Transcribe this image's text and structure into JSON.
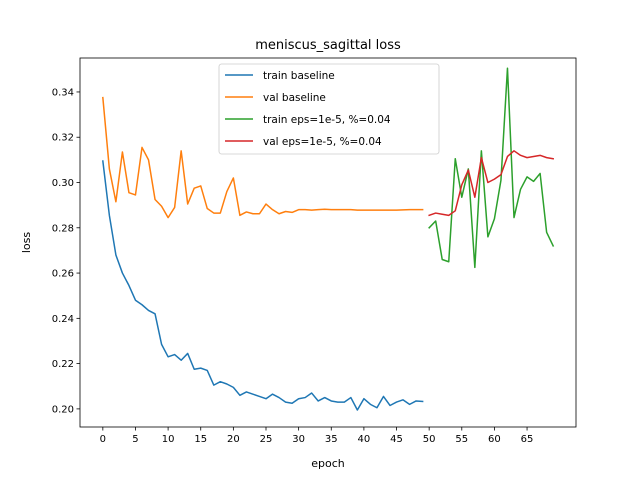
{
  "chart_data": {
    "type": "line",
    "title": "meniscus_sagittal loss",
    "xlabel": "epoch",
    "ylabel": "loss",
    "xlim": [
      -3.5,
      72.5
    ],
    "ylim": [
      0.192,
      0.355
    ],
    "xticks": [
      0,
      5,
      10,
      15,
      20,
      25,
      30,
      35,
      40,
      45,
      50,
      55,
      60,
      65
    ],
    "yticks": [
      0.2,
      0.22,
      0.24,
      0.26,
      0.28,
      0.3,
      0.32,
      0.34
    ],
    "xtick_labels": [
      "0",
      "5",
      "10",
      "15",
      "20",
      "25",
      "30",
      "35",
      "40",
      "45",
      "50",
      "55",
      "60",
      "65"
    ],
    "ytick_labels": [
      "0.20",
      "0.22",
      "0.24",
      "0.26",
      "0.28",
      "0.30",
      "0.32",
      "0.34"
    ],
    "grid": false,
    "legend_position": "top-center",
    "series": [
      {
        "name": "train baseline",
        "color": "#1f77b4",
        "x": [
          0,
          1,
          2,
          3,
          4,
          5,
          6,
          7,
          8,
          9,
          10,
          11,
          12,
          13,
          14,
          15,
          16,
          17,
          18,
          19,
          20,
          21,
          22,
          23,
          24,
          25,
          26,
          27,
          28,
          29,
          30,
          31,
          32,
          33,
          34,
          35,
          36,
          37,
          38,
          39,
          40,
          41,
          42,
          43,
          44,
          45,
          46,
          47,
          48,
          49
        ],
        "values": [
          0.3095,
          0.2855,
          0.268,
          0.26,
          0.2545,
          0.248,
          0.246,
          0.2435,
          0.242,
          0.2285,
          0.223,
          0.224,
          0.2215,
          0.2245,
          0.2175,
          0.218,
          0.217,
          0.2105,
          0.212,
          0.211,
          0.2095,
          0.206,
          0.2075,
          0.2065,
          0.2055,
          0.2045,
          0.2065,
          0.205,
          0.203,
          0.2025,
          0.2045,
          0.205,
          0.207,
          0.2035,
          0.205,
          0.2035,
          0.203,
          0.203,
          0.205,
          0.1995,
          0.2045,
          0.202,
          0.2005,
          0.2055,
          0.2015,
          0.203,
          0.204,
          0.202,
          0.2035,
          0.2033
        ]
      },
      {
        "name": "val baseline",
        "color": "#ff7f0e",
        "x": [
          0,
          1,
          2,
          3,
          4,
          5,
          6,
          7,
          8,
          9,
          10,
          11,
          12,
          13,
          14,
          15,
          16,
          17,
          18,
          19,
          20,
          21,
          22,
          23,
          24,
          25,
          26,
          27,
          28,
          29,
          30,
          31,
          32,
          33,
          34,
          35,
          36,
          37,
          38,
          39,
          40,
          41,
          42,
          43,
          44,
          45,
          46,
          47,
          48,
          49
        ],
        "values": [
          0.3375,
          0.306,
          0.2915,
          0.3135,
          0.2955,
          0.2945,
          0.3155,
          0.31,
          0.2925,
          0.2895,
          0.2845,
          0.289,
          0.314,
          0.2905,
          0.2975,
          0.2985,
          0.2885,
          0.2865,
          0.2865,
          0.296,
          0.302,
          0.2855,
          0.287,
          0.2862,
          0.2862,
          0.2905,
          0.288,
          0.2862,
          0.2872,
          0.2868,
          0.288,
          0.288,
          0.2878,
          0.288,
          0.2882,
          0.288,
          0.288,
          0.288,
          0.288,
          0.2878,
          0.2878,
          0.2878,
          0.2878,
          0.2878,
          0.2878,
          0.2878,
          0.2879,
          0.288,
          0.288,
          0.288
        ]
      },
      {
        "name": "train eps=1e-5, %=0.04",
        "color": "#2ca02c",
        "x": [
          50,
          51,
          52,
          53,
          54,
          55,
          56,
          57,
          58,
          59,
          60,
          61,
          62,
          63,
          64,
          65,
          66,
          67,
          68,
          69
        ],
        "values": [
          0.28,
          0.283,
          0.266,
          0.265,
          0.3105,
          0.2935,
          0.306,
          0.2625,
          0.314,
          0.276,
          0.284,
          0.301,
          0.3505,
          0.2845,
          0.297,
          0.3025,
          0.3005,
          0.304,
          0.278,
          0.272
        ]
      },
      {
        "name": "val eps=1e-5, %=0.04",
        "color": "#d62728",
        "x": [
          50,
          51,
          52,
          53,
          54,
          55,
          56,
          57,
          58,
          59,
          60,
          61,
          62,
          63,
          64,
          65,
          66,
          67,
          68,
          69
        ],
        "values": [
          0.2855,
          0.2865,
          0.286,
          0.2855,
          0.2875,
          0.299,
          0.3055,
          0.2935,
          0.311,
          0.3,
          0.3015,
          0.3035,
          0.3115,
          0.314,
          0.312,
          0.311,
          0.3115,
          0.312,
          0.311,
          0.3105
        ]
      }
    ]
  }
}
